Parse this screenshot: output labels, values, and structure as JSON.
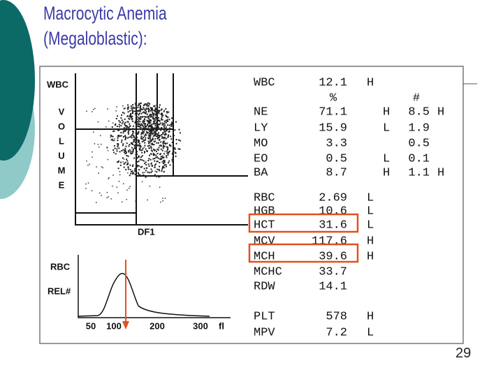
{
  "title": [
    "Macrocytic Anemia",
    "(Megaloblastic):"
  ],
  "page_number": "29",
  "scattergram": {
    "y_label": "WBC",
    "volume_label": [
      "V",
      "O",
      "L",
      "U",
      "M",
      "E"
    ],
    "x_label": "DF1"
  },
  "histogram": {
    "y_labels": [
      "RBC",
      "REL#"
    ],
    "x_ticks": [
      "50",
      "100",
      "200",
      "300"
    ],
    "x_unit": "fl"
  },
  "results": {
    "header": {
      "percent": "%",
      "absolute": "#"
    },
    "rows": [
      {
        "name": "WBC",
        "value": "12.1",
        "flag": "H"
      },
      {
        "name": "NE",
        "value": "71.1",
        "abs_flag": "H",
        "abs_value": "8.5",
        "abs_value_flag": "H"
      },
      {
        "name": "LY",
        "value": "15.9",
        "abs_flag": "L",
        "abs_value": "1.9"
      },
      {
        "name": "MO",
        "value": "3.3",
        "abs_value": "0.5"
      },
      {
        "name": "EO",
        "value": "0.5",
        "abs_flag": "L",
        "abs_value": "0.1"
      },
      {
        "name": "BA",
        "value": "8.7",
        "abs_flag": "H",
        "abs_value": "1.1",
        "abs_value_flag": "H"
      },
      {
        "name": "RBC",
        "value": "2.69",
        "flag": "L"
      },
      {
        "name": "HGB",
        "value": "10.6",
        "flag": "L"
      },
      {
        "name": "HCT",
        "value": "31.6",
        "flag": "L"
      },
      {
        "name": "MCV",
        "value": "117.6",
        "flag": "H"
      },
      {
        "name": "MCH",
        "value": "39.6",
        "flag": "H"
      },
      {
        "name": "MCHC",
        "value": "33.7"
      },
      {
        "name": "RDW",
        "value": "14.1"
      },
      {
        "name": "PLT",
        "value": "578",
        "flag": "H"
      },
      {
        "name": "MPV",
        "value": "7.2",
        "flag": "L"
      }
    ]
  }
}
